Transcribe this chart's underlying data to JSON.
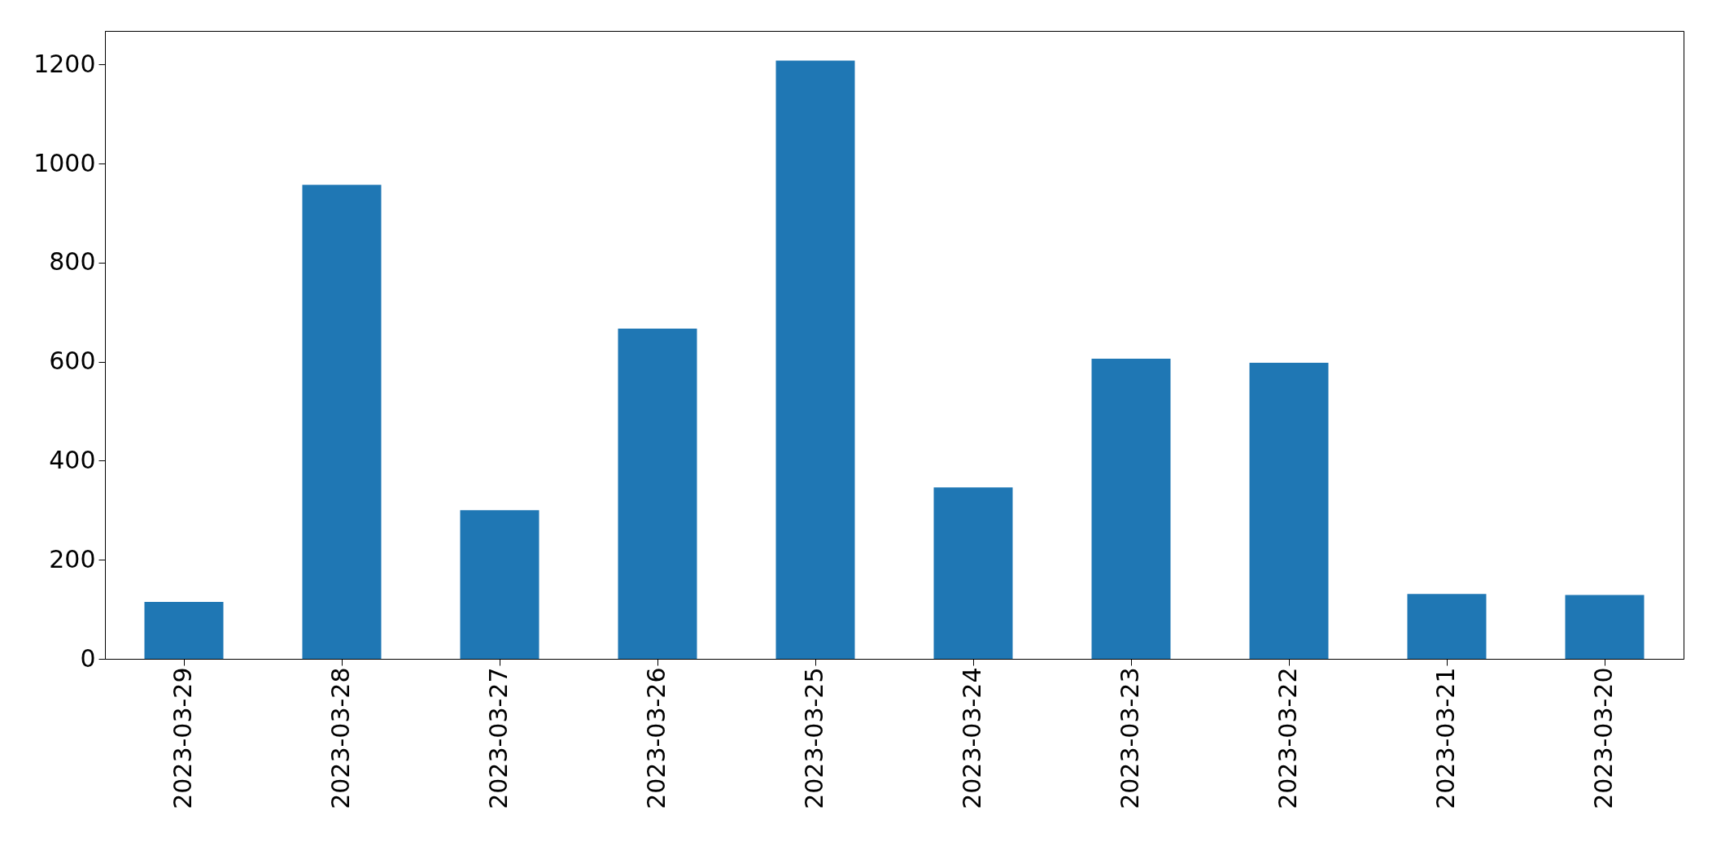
{
  "chart_data": {
    "type": "bar",
    "categories": [
      "2023-03-29",
      "2023-03-28",
      "2023-03-27",
      "2023-03-26",
      "2023-03-25",
      "2023-03-24",
      "2023-03-23",
      "2023-03-22",
      "2023-03-21",
      "2023-03-20"
    ],
    "values": [
      115,
      957,
      300,
      667,
      1208,
      346,
      606,
      598,
      131,
      129
    ],
    "color": "#1f77b4",
    "ylim": [
      0,
      1268
    ],
    "yticks": [
      0,
      200,
      400,
      600,
      800,
      1000,
      1200
    ],
    "grid": false
  }
}
